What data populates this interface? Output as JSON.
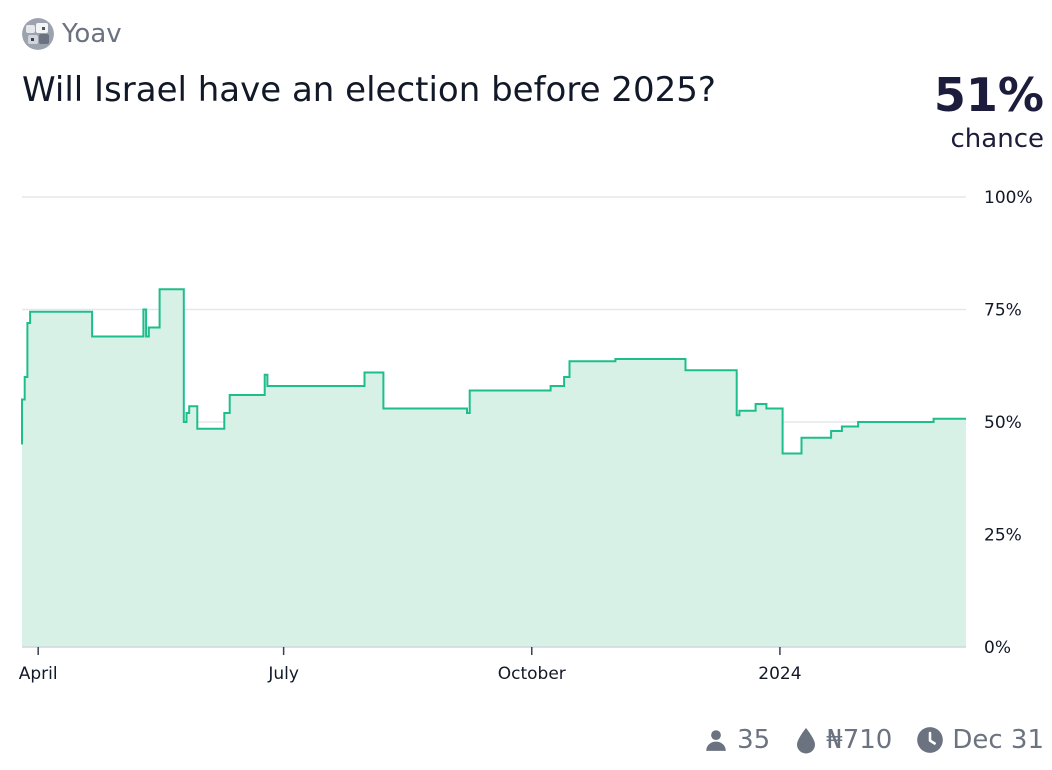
{
  "creator": {
    "name": "Yoav",
    "avatar_icon": "creator-avatar"
  },
  "question": {
    "title": "Will Israel have an election before 2025?"
  },
  "probability": {
    "value": "51%",
    "label": "chance"
  },
  "stats": {
    "traders": "35",
    "traders_icon": "user-icon",
    "liquidity": "₦710",
    "liquidity_icon": "droplet-icon",
    "close_date": "Dec 31",
    "close_icon": "clock-icon"
  },
  "colors": {
    "line": "#1ebd8c",
    "fill": "#d8f1e6",
    "grid": "#e5e7eb",
    "axis": "#d1d5db"
  },
  "chart_data": {
    "type": "area",
    "title": "",
    "xlabel": "",
    "ylabel": "",
    "ylim": [
      0,
      100
    ],
    "xlim": [
      "2023-03-26",
      "2024-03-10"
    ],
    "yticks": [
      {
        "value": 0,
        "label": "0%"
      },
      {
        "value": 25,
        "label": "25%"
      },
      {
        "value": 50,
        "label": "50%"
      },
      {
        "value": 75,
        "label": "75%"
      },
      {
        "value": 100,
        "label": "100%"
      }
    ],
    "xticks": [
      {
        "date": "2023-04-01",
        "label": "April"
      },
      {
        "date": "2023-07-01",
        "label": "July"
      },
      {
        "date": "2023-10-01",
        "label": "October"
      },
      {
        "date": "2024-01-01",
        "label": "2024"
      }
    ],
    "grid": true,
    "step": true,
    "series": [
      {
        "points": [
          [
            "2023-03-26",
            45
          ],
          [
            "2023-03-26",
            55
          ],
          [
            "2023-03-27",
            58
          ],
          [
            "2023-03-27",
            60
          ],
          [
            "2023-03-28",
            72
          ],
          [
            "2023-03-29",
            74.5
          ],
          [
            "2023-04-21",
            69
          ],
          [
            "2023-05-10",
            75
          ],
          [
            "2023-05-11",
            69
          ],
          [
            "2023-05-12",
            71
          ],
          [
            "2023-05-16",
            79.5
          ],
          [
            "2023-05-25",
            50
          ],
          [
            "2023-05-26",
            52
          ],
          [
            "2023-05-27",
            53.5
          ],
          [
            "2023-05-30",
            48.5
          ],
          [
            "2023-06-09",
            52
          ],
          [
            "2023-06-11",
            56
          ],
          [
            "2023-06-24",
            58
          ],
          [
            "2023-06-24",
            60.5
          ],
          [
            "2023-06-25",
            58
          ],
          [
            "2023-07-31",
            61
          ],
          [
            "2023-08-07",
            53
          ],
          [
            "2023-09-07",
            52
          ],
          [
            "2023-09-08",
            57
          ],
          [
            "2023-10-08",
            58
          ],
          [
            "2023-10-13",
            60
          ],
          [
            "2023-10-15",
            63.5
          ],
          [
            "2023-10-20",
            63.5
          ],
          [
            "2023-10-21",
            63.5
          ],
          [
            "2023-11-01",
            64
          ],
          [
            "2023-11-27",
            61.5
          ],
          [
            "2023-12-16",
            51.5
          ],
          [
            "2023-12-17",
            52.5
          ],
          [
            "2023-12-23",
            54
          ],
          [
            "2023-12-27",
            53
          ],
          [
            "2024-01-02",
            43
          ],
          [
            "2024-01-09",
            46.5
          ],
          [
            "2024-01-20",
            48
          ],
          [
            "2024-01-24",
            49
          ],
          [
            "2024-01-30",
            50
          ],
          [
            "2024-02-27",
            50.7
          ],
          [
            "2024-03-10",
            50.7
          ]
        ]
      }
    ]
  }
}
